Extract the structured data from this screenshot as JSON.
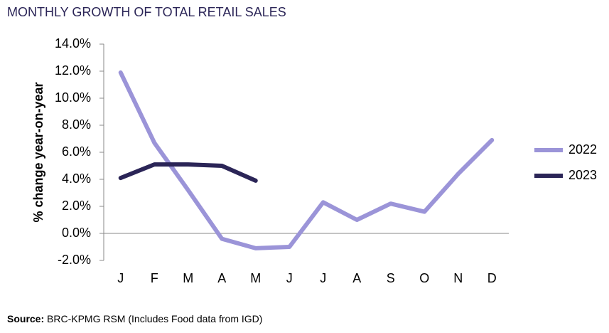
{
  "chart_data": {
    "type": "line",
    "title": "MONTHLY GROWTH OF TOTAL RETAIL SALES",
    "y_label": "% change year-on-year",
    "source_label": "Source:",
    "source_text": "BRC-KPMG RSM (Includes Food data from IGD)",
    "categories": [
      "J",
      "F",
      "M",
      "A",
      "M",
      "J",
      "J",
      "A",
      "S",
      "O",
      "N",
      "D"
    ],
    "series": [
      {
        "name": "2022",
        "color": "#9b94d8",
        "values": [
          11.9,
          6.7,
          3.2,
          -0.4,
          -1.1,
          -1.0,
          2.3,
          1.0,
          2.2,
          1.6,
          4.4,
          6.9
        ]
      },
      {
        "name": "2023",
        "color": "#2b2557",
        "values": [
          4.1,
          5.1,
          5.1,
          5.0,
          3.9,
          null,
          null,
          null,
          null,
          null,
          null,
          null
        ]
      }
    ],
    "ylim": [
      -2,
      14
    ],
    "yticks": [
      {
        "value": -2,
        "label": "-2.0%"
      },
      {
        "value": 0,
        "label": "0.0%"
      },
      {
        "value": 2,
        "label": "2.0%"
      },
      {
        "value": 4,
        "label": "4.0%"
      },
      {
        "value": 6,
        "label": "6.0%"
      },
      {
        "value": 8,
        "label": "8.0%"
      },
      {
        "value": 10,
        "label": "10.0%"
      },
      {
        "value": 12,
        "label": "12.0%"
      },
      {
        "value": 14,
        "label": "14.0%"
      }
    ],
    "legend": "right",
    "grid": false
  }
}
